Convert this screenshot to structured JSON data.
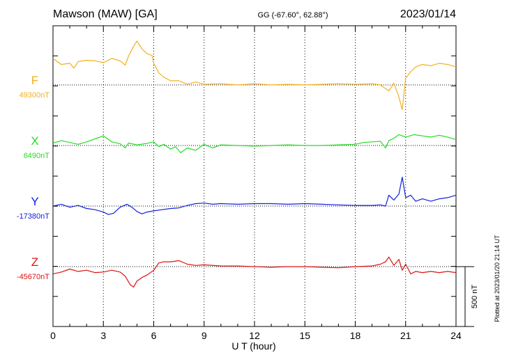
{
  "header": {
    "station": "Mawson (MAW)  [GA]",
    "coords": "GG (-67.60°,  62.88°)",
    "date": "2023/01/14"
  },
  "side_note": "Plotted at 2023/01/20 21:14 UT",
  "scale_bar": {
    "label": "500 nT",
    "value_nT": 500
  },
  "chart_data": {
    "type": "line",
    "xlabel": "U T (hour)",
    "xlim": [
      0,
      24
    ],
    "xticks": [
      "0",
      "3",
      "6",
      "9",
      "12",
      "15",
      "18",
      "21",
      "24"
    ],
    "grid": true,
    "nT_per_division": 250,
    "series": [
      {
        "name": "F",
        "baseline_label": "49300nT",
        "baseline_nT": 49300,
        "color": "#f2b01e",
        "x": [
          0,
          0.5,
          1,
          1.25,
          1.5,
          2,
          2.5,
          3,
          3.5,
          4,
          4.3,
          4.5,
          4.8,
          5,
          5.3,
          5.6,
          5.9,
          6,
          6.3,
          6.6,
          7,
          7.5,
          8,
          8.5,
          9,
          10,
          11,
          12,
          13,
          14,
          15,
          16,
          17,
          18,
          19,
          19.5,
          20,
          20.3,
          20.6,
          20.8,
          21,
          21.3,
          21.6,
          22,
          22.5,
          23,
          23.5,
          24
        ],
        "values": [
          49520,
          49470,
          49480,
          49440,
          49495,
          49505,
          49500,
          49485,
          49520,
          49500,
          49465,
          49540,
          49620,
          49665,
          49600,
          49560,
          49545,
          49480,
          49400,
          49365,
          49335,
          49335,
          49305,
          49325,
          49305,
          49310,
          49300,
          49310,
          49300,
          49305,
          49300,
          49305,
          49310,
          49305,
          49310,
          49300,
          49250,
          49315,
          49200,
          49095,
          49355,
          49410,
          49450,
          49470,
          49460,
          49480,
          49470,
          49450
        ]
      },
      {
        "name": "X",
        "baseline_label": "6490nT",
        "baseline_nT": 6490,
        "color": "#22dd22",
        "x": [
          0,
          0.5,
          1,
          1.5,
          2,
          2.5,
          3,
          3.5,
          4,
          4.3,
          4.5,
          5,
          5.5,
          6,
          6.3,
          6.6,
          7,
          7.3,
          7.6,
          8,
          8.5,
          9,
          9.5,
          10,
          11,
          12,
          13,
          14,
          15,
          16,
          17,
          18,
          18.5,
          19,
          19.5,
          19.8,
          20,
          20.3,
          20.6,
          21,
          21.5,
          22,
          22.5,
          23,
          23.5,
          24
        ],
        "values": [
          6510,
          6530,
          6515,
          6500,
          6520,
          6545,
          6570,
          6520,
          6505,
          6470,
          6510,
          6495,
          6505,
          6520,
          6480,
          6500,
          6460,
          6480,
          6430,
          6470,
          6450,
          6500,
          6470,
          6495,
          6490,
          6485,
          6490,
          6495,
          6490,
          6490,
          6495,
          6500,
          6515,
          6520,
          6525,
          6470,
          6530,
          6550,
          6580,
          6560,
          6580,
          6570,
          6560,
          6575,
          6560,
          6540
        ]
      },
      {
        "name": "Y",
        "baseline_label": "-17380nT",
        "baseline_nT": -17380,
        "color": "#1020e0",
        "x": [
          0,
          0.5,
          1,
          1.5,
          2,
          2.5,
          3,
          3.3,
          3.6,
          4,
          4.4,
          4.7,
          5,
          5.3,
          5.6,
          6,
          6.5,
          7,
          7.5,
          8,
          8.5,
          9,
          9.5,
          10,
          11,
          12,
          13,
          14,
          15,
          16,
          17,
          18,
          19,
          19.5,
          19.8,
          20,
          20.3,
          20.6,
          20.8,
          21,
          21.3,
          21.6,
          22,
          22.5,
          23,
          23.5,
          24
        ],
        "values": [
          -17380,
          -17365,
          -17390,
          -17375,
          -17400,
          -17410,
          -17430,
          -17450,
          -17440,
          -17390,
          -17365,
          -17390,
          -17425,
          -17445,
          -17430,
          -17420,
          -17410,
          -17400,
          -17395,
          -17375,
          -17360,
          -17355,
          -17365,
          -17360,
          -17365,
          -17360,
          -17360,
          -17365,
          -17360,
          -17365,
          -17370,
          -17375,
          -17375,
          -17370,
          -17380,
          -17290,
          -17330,
          -17280,
          -17140,
          -17310,
          -17290,
          -17340,
          -17320,
          -17340,
          -17320,
          -17310,
          -17290
        ]
      },
      {
        "name": "Z",
        "baseline_label": "-45670nT",
        "baseline_nT": -45670,
        "color": "#dd1111",
        "x": [
          0,
          0.5,
          1,
          1.5,
          2,
          2.5,
          3,
          3.5,
          4,
          4.3,
          4.6,
          4.8,
          5,
          5.3,
          5.6,
          6,
          6.3,
          6.6,
          7,
          7.5,
          8,
          8.5,
          9,
          10,
          11,
          12,
          13,
          14,
          15,
          16,
          17,
          18,
          19,
          19.5,
          19.8,
          20,
          20.3,
          20.6,
          20.8,
          21,
          21.3,
          21.6,
          22,
          22.5,
          23,
          23.5,
          24
        ],
        "values": [
          -45730,
          -45715,
          -45690,
          -45710,
          -45700,
          -45720,
          -45715,
          -45700,
          -45715,
          -45750,
          -45820,
          -45840,
          -45790,
          -45760,
          -45740,
          -45700,
          -45640,
          -45630,
          -45630,
          -45620,
          -45650,
          -45660,
          -45655,
          -45665,
          -45665,
          -45670,
          -45675,
          -45670,
          -45670,
          -45675,
          -45680,
          -45670,
          -45665,
          -45650,
          -45630,
          -45590,
          -45660,
          -45610,
          -45700,
          -45650,
          -45730,
          -45710,
          -45720,
          -45710,
          -45720,
          -45710,
          -45720
        ]
      }
    ]
  }
}
